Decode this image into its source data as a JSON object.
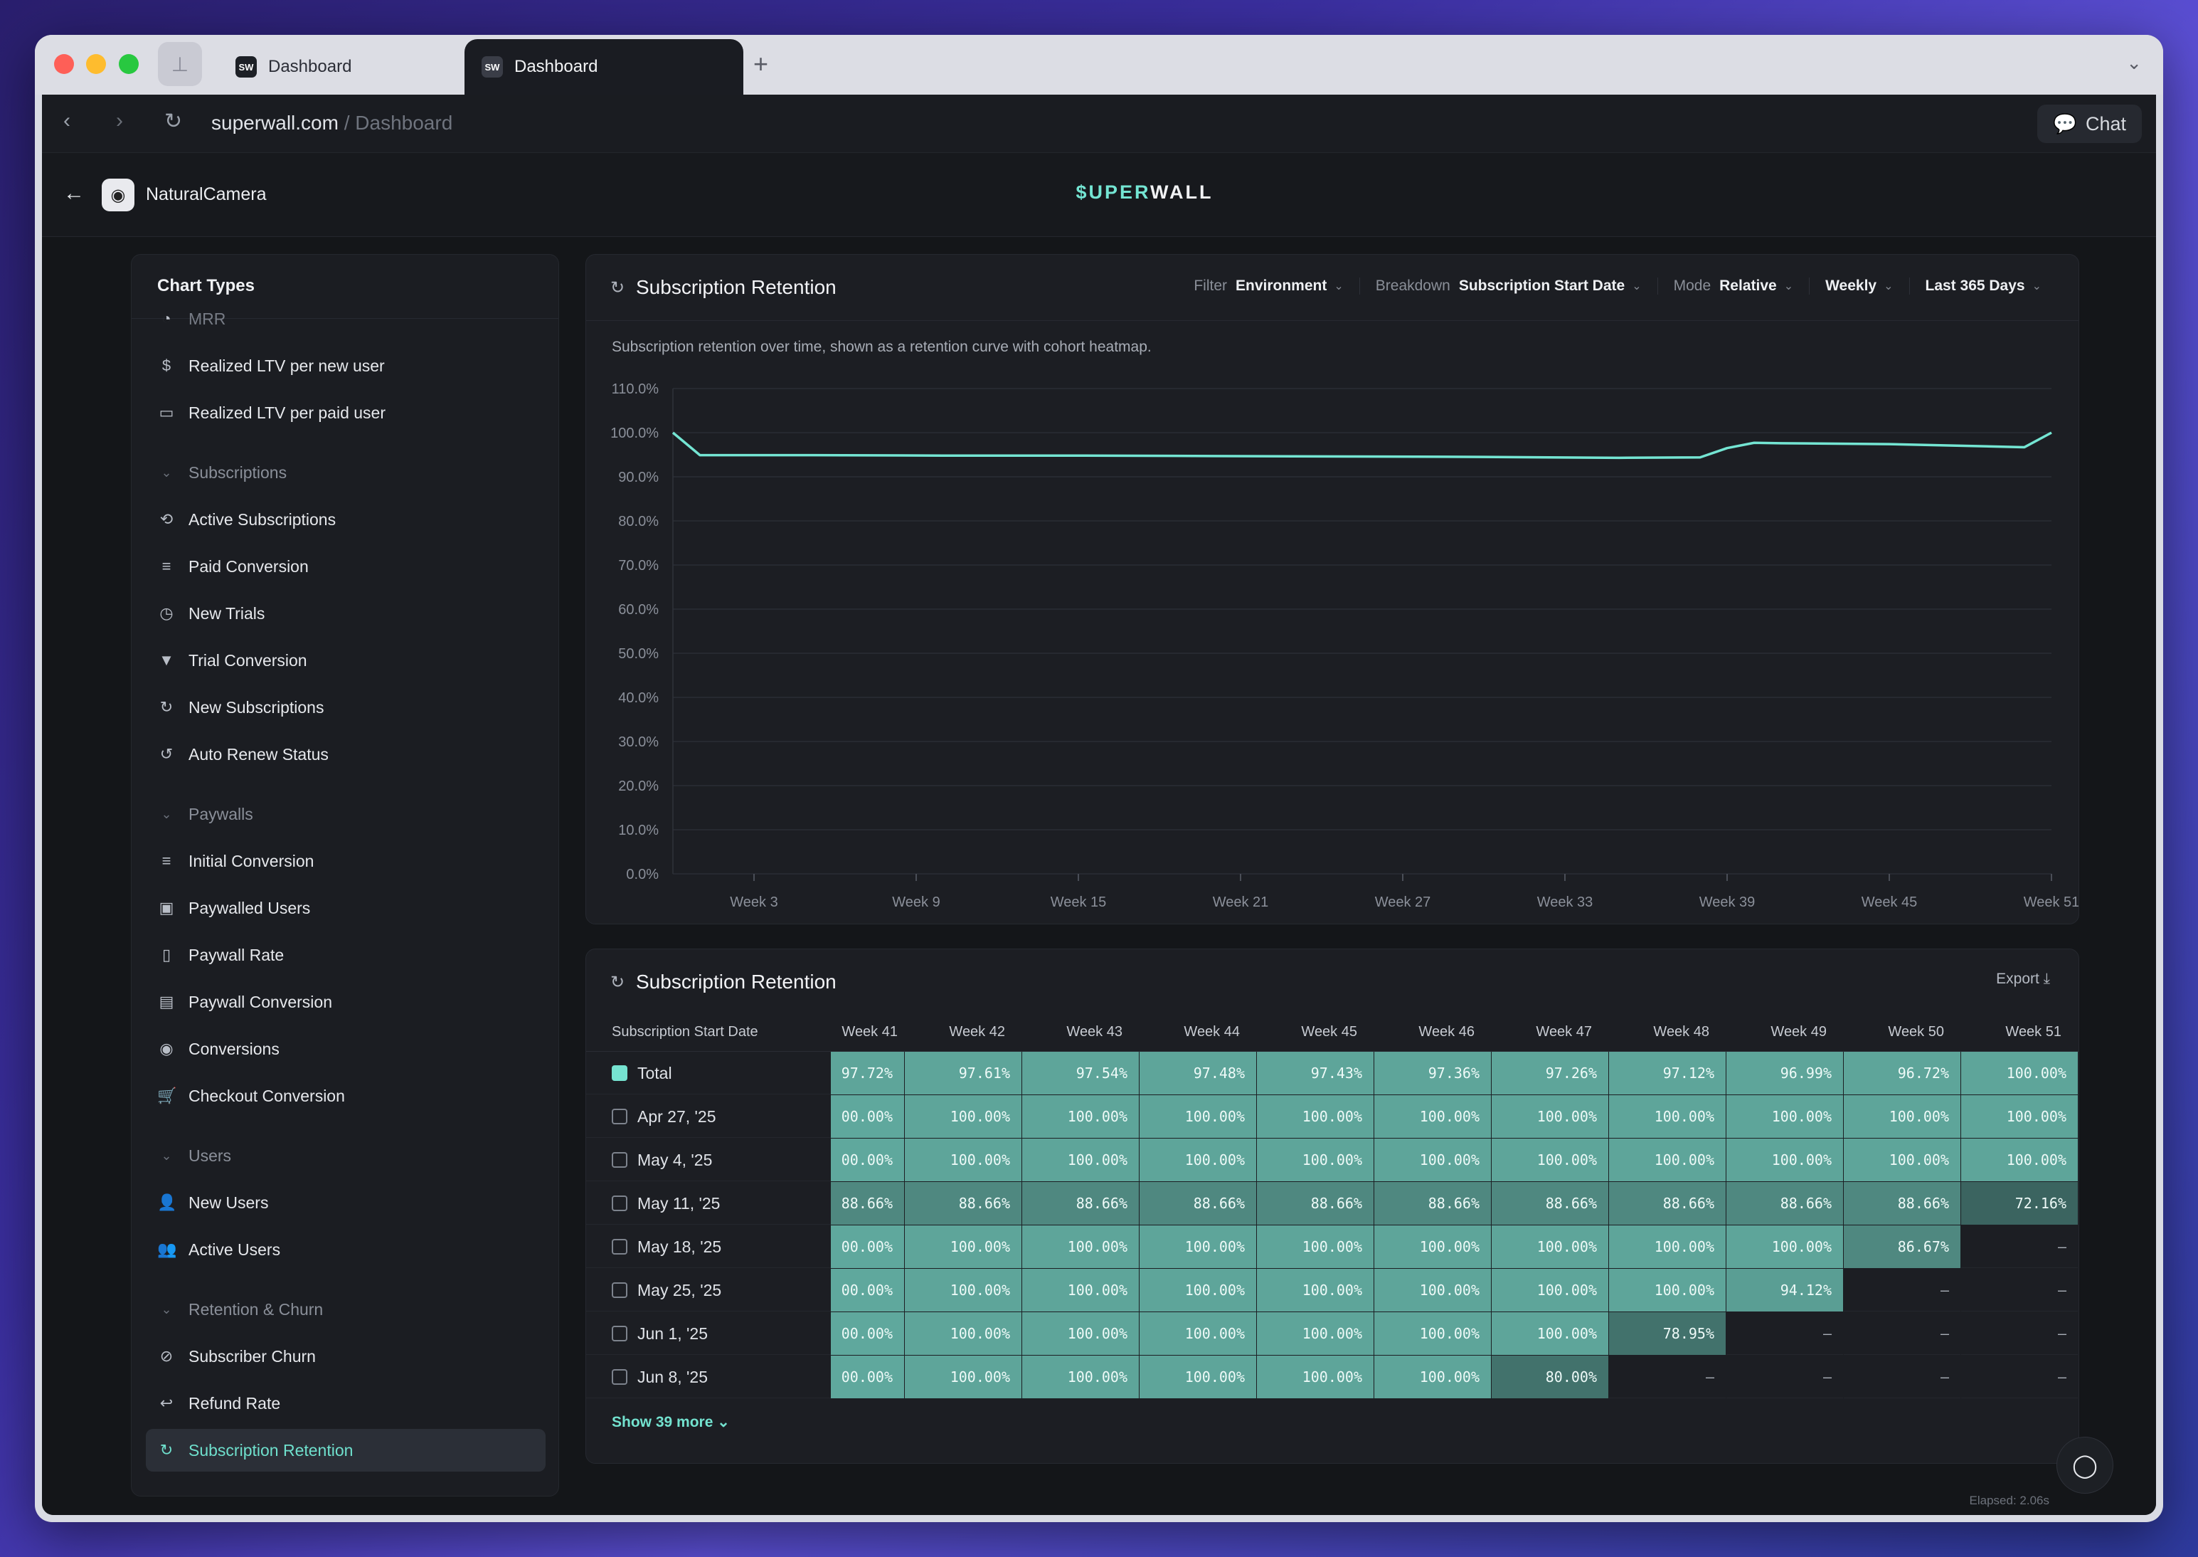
{
  "browser": {
    "tabs": [
      {
        "label": "Dashboard",
        "favicon": "SW"
      },
      {
        "label": "Dashboard",
        "favicon": "SW"
      }
    ],
    "url_host": "superwall.com",
    "url_path": " / Dashboard",
    "chat_label": "Chat"
  },
  "app": {
    "name": "NaturalCamera",
    "logo_left": "$UPER",
    "logo_right": "WALL"
  },
  "sidebar": {
    "title": "Chart Types",
    "items": [
      {
        "label": "MRR",
        "icon": "mrr-icon",
        "glyph": "◔",
        "group": false,
        "faded": true
      },
      {
        "label": "Realized LTV per new user",
        "icon": "dollar-icon",
        "glyph": "$",
        "group": false
      },
      {
        "label": "Realized LTV per paid user",
        "icon": "calendar-icon",
        "glyph": "▭",
        "group": false
      },
      {
        "label": "Subscriptions",
        "icon": "chevron-down-icon",
        "glyph": "⌄",
        "group": true
      },
      {
        "label": "Active Subscriptions",
        "icon": "cycle-icon",
        "glyph": "⟲",
        "group": false
      },
      {
        "label": "Paid Conversion",
        "icon": "filter-lines-icon",
        "glyph": "≡",
        "group": false
      },
      {
        "label": "New Trials",
        "icon": "timer-icon",
        "glyph": "◷",
        "group": false
      },
      {
        "label": "Trial Conversion",
        "icon": "funnel-icon",
        "glyph": "▼",
        "group": false
      },
      {
        "label": "New Subscriptions",
        "icon": "refresh-icon",
        "glyph": "↻",
        "group": false
      },
      {
        "label": "Auto Renew Status",
        "icon": "renew-icon",
        "glyph": "↺",
        "group": false
      },
      {
        "label": "Paywalls",
        "icon": "chevron-down-icon",
        "glyph": "⌄",
        "group": true
      },
      {
        "label": "Initial Conversion",
        "icon": "filter-lines-icon",
        "glyph": "≡",
        "group": false
      },
      {
        "label": "Paywalled Users",
        "icon": "paywall-user-icon",
        "glyph": "▣",
        "group": false
      },
      {
        "label": "Paywall Rate",
        "icon": "phone-icon",
        "glyph": "▯",
        "group": false
      },
      {
        "label": "Paywall Conversion",
        "icon": "receipt-icon",
        "glyph": "▤",
        "group": false
      },
      {
        "label": "Conversions",
        "icon": "broadcast-icon",
        "glyph": "◉",
        "group": false
      },
      {
        "label": "Checkout Conversion",
        "icon": "cart-icon",
        "glyph": "🛒",
        "group": false
      },
      {
        "label": "Users",
        "icon": "chevron-down-icon",
        "glyph": "⌄",
        "group": true
      },
      {
        "label": "New Users",
        "icon": "user-icon",
        "glyph": "👤",
        "group": false
      },
      {
        "label": "Active Users",
        "icon": "users-icon",
        "glyph": "👥",
        "group": false
      },
      {
        "label": "Retention & Churn",
        "icon": "chevron-down-icon",
        "glyph": "⌄",
        "group": true
      },
      {
        "label": "Subscriber Churn",
        "icon": "churn-icon",
        "glyph": "⊘",
        "group": false
      },
      {
        "label": "Refund Rate",
        "icon": "reply-icon",
        "glyph": "↩",
        "group": false
      },
      {
        "label": "Subscription Retention",
        "icon": "retention-icon",
        "glyph": "↻",
        "group": false,
        "active": true
      }
    ]
  },
  "chart_panel": {
    "title": "Subscription Retention",
    "filter_label": "Filter",
    "filter_value": "Environment",
    "breakdown_label": "Breakdown",
    "breakdown_value": "Subscription Start Date",
    "mode_label": "Mode",
    "mode_value": "Relative",
    "interval_value": "Weekly",
    "range_value": "Last 365 Days",
    "description": "Subscription retention over time, shown as a retention curve with cohort heatmap."
  },
  "chart_data": {
    "type": "line",
    "y_ticks": [
      "110.0%",
      "100.0%",
      "90.0%",
      "80.0%",
      "70.0%",
      "60.0%",
      "50.0%",
      "40.0%",
      "30.0%",
      "20.0%",
      "10.0%",
      "0.0%"
    ],
    "x_ticks": [
      "Week 3",
      "Week 9",
      "Week 15",
      "Week 21",
      "Week 27",
      "Week 33",
      "Week 39",
      "Week 45",
      "Week 51"
    ],
    "ylim": [
      0,
      110
    ],
    "xlim": [
      0,
      51
    ],
    "color": "#74e5d3",
    "series": [
      {
        "x": [
          0,
          1,
          5,
          10,
          15,
          20,
          25,
          30,
          35,
          38,
          39,
          40,
          41,
          45,
          50,
          51
        ],
        "values": [
          100,
          94.9,
          94.9,
          94.8,
          94.8,
          94.7,
          94.6,
          94.5,
          94.3,
          94.4,
          96.5,
          97.7,
          97.6,
          97.4,
          96.7,
          100
        ]
      }
    ]
  },
  "table_panel": {
    "title": "Subscription Retention",
    "export_label": "Export",
    "first_column": "Subscription Start Date",
    "columns": [
      "Week 41",
      "Week 42",
      "Week 43",
      "Week 44",
      "Week 45",
      "Week 46",
      "Week 47",
      "Week 48",
      "Week 49",
      "Week 50",
      "Week 51"
    ],
    "rows": [
      {
        "label": "Total",
        "checked": true,
        "values": [
          "97.72%",
          "97.61%",
          "97.54%",
          "97.48%",
          "97.43%",
          "97.36%",
          "97.26%",
          "97.12%",
          "96.99%",
          "96.72%",
          "100.00%"
        ]
      },
      {
        "label": "Apr 27, '25",
        "checked": false,
        "values": [
          "00.00%",
          "100.00%",
          "100.00%",
          "100.00%",
          "100.00%",
          "100.00%",
          "100.00%",
          "100.00%",
          "100.00%",
          "100.00%",
          "100.00%"
        ]
      },
      {
        "label": "May 4, '25",
        "checked": false,
        "values": [
          "00.00%",
          "100.00%",
          "100.00%",
          "100.00%",
          "100.00%",
          "100.00%",
          "100.00%",
          "100.00%",
          "100.00%",
          "100.00%",
          "100.00%"
        ]
      },
      {
        "label": "May 11, '25",
        "checked": false,
        "values": [
          "88.66%",
          "88.66%",
          "88.66%",
          "88.66%",
          "88.66%",
          "88.66%",
          "88.66%",
          "88.66%",
          "88.66%",
          "88.66%",
          "72.16%"
        ]
      },
      {
        "label": "May 18, '25",
        "checked": false,
        "values": [
          "00.00%",
          "100.00%",
          "100.00%",
          "100.00%",
          "100.00%",
          "100.00%",
          "100.00%",
          "100.00%",
          "100.00%",
          "86.67%",
          "–"
        ]
      },
      {
        "label": "May 25, '25",
        "checked": false,
        "values": [
          "00.00%",
          "100.00%",
          "100.00%",
          "100.00%",
          "100.00%",
          "100.00%",
          "100.00%",
          "100.00%",
          "94.12%",
          "–",
          "–"
        ]
      },
      {
        "label": "Jun 1, '25",
        "checked": false,
        "values": [
          "00.00%",
          "100.00%",
          "100.00%",
          "100.00%",
          "100.00%",
          "100.00%",
          "100.00%",
          "78.95%",
          "–",
          "–",
          "–"
        ]
      },
      {
        "label": "Jun 8, '25",
        "checked": false,
        "values": [
          "00.00%",
          "100.00%",
          "100.00%",
          "100.00%",
          "100.00%",
          "100.00%",
          "80.00%",
          "–",
          "–",
          "–",
          "–"
        ]
      }
    ],
    "show_more_label": "Show 39 more"
  },
  "footer": {
    "elapsed": "Elapsed: 2.06s"
  }
}
